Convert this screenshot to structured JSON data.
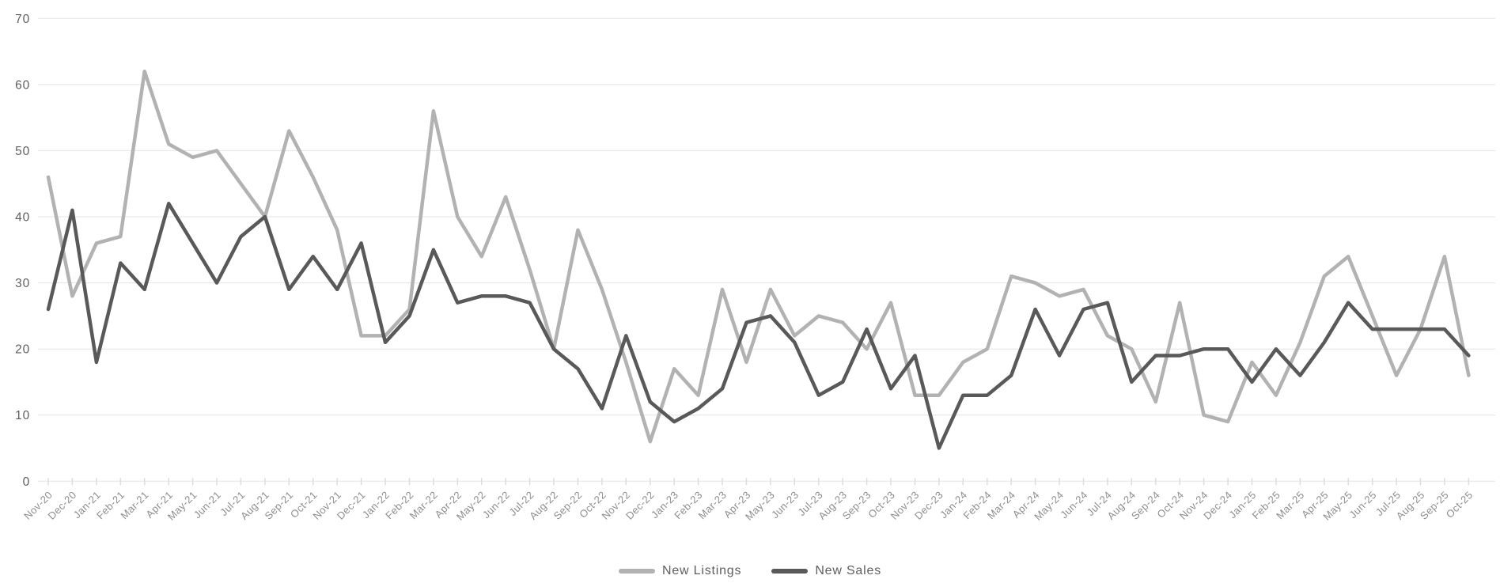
{
  "chart_data": {
    "type": "line",
    "title": "",
    "xlabel": "",
    "ylabel": "",
    "ylim": [
      0,
      70
    ],
    "yticks": [
      0,
      10,
      20,
      30,
      40,
      50,
      60,
      70
    ],
    "grid": "horizontal",
    "legend_position": "bottom-center",
    "categories": [
      "Nov-20",
      "Dec-20",
      "Jan-21",
      "Feb-21",
      "Mar-21",
      "Apr-21",
      "May-21",
      "Jun-21",
      "Jul-21",
      "Aug-21",
      "Sep-21",
      "Oct-21",
      "Nov-21",
      "Dec-21",
      "Jan-22",
      "Feb-22",
      "Mar-22",
      "Apr-22",
      "May-22",
      "Jun-22",
      "Jul-22",
      "Aug-22",
      "Sep-22",
      "Oct-22",
      "Nov-22",
      "Dec-22",
      "Jan-23",
      "Feb-23",
      "Mar-23",
      "Apr-23",
      "May-23",
      "Jun-23",
      "Jul-23",
      "Aug-23",
      "Sep-23",
      "Oct-23",
      "Nov-23",
      "Dec-23",
      "Jan-24",
      "Feb-24",
      "Mar-24",
      "Apr-24",
      "May-24",
      "Jun-24",
      "Jul-24",
      "Aug-24",
      "Sep-24",
      "Oct-24",
      "Nov-24",
      "Dec-24",
      "Jan-25",
      "Feb-25",
      "Mar-25",
      "Apr-25",
      "May-25",
      "Jun-25",
      "Jul-25",
      "Aug-25",
      "Sep-25",
      "Oct-25"
    ],
    "series": [
      {
        "name": "New Listings",
        "color": "#b2b2b2",
        "values": [
          46,
          28,
          36,
          37,
          62,
          51,
          49,
          50,
          45,
          40,
          53,
          46,
          38,
          22,
          22,
          26,
          56,
          40,
          34,
          43,
          32,
          20,
          38,
          29,
          18,
          6,
          17,
          13,
          29,
          18,
          29,
          22,
          25,
          24,
          20,
          27,
          13,
          13,
          18,
          20,
          31,
          30,
          28,
          29,
          22,
          20,
          12,
          27,
          10,
          9,
          18,
          13,
          21,
          31,
          34,
          25,
          16,
          23,
          34,
          16
        ]
      },
      {
        "name": "New Sales",
        "color": "#595959",
        "values": [
          26,
          41,
          18,
          33,
          29,
          42,
          36,
          30,
          37,
          40,
          29,
          34,
          29,
          36,
          21,
          25,
          35,
          27,
          28,
          28,
          27,
          20,
          17,
          11,
          22,
          12,
          9,
          11,
          14,
          24,
          25,
          21,
          13,
          15,
          23,
          14,
          19,
          5,
          13,
          13,
          16,
          26,
          19,
          26,
          27,
          15,
          19,
          19,
          20,
          20,
          15,
          20,
          16,
          21,
          27,
          23,
          23,
          23,
          23,
          19
        ]
      }
    ]
  }
}
